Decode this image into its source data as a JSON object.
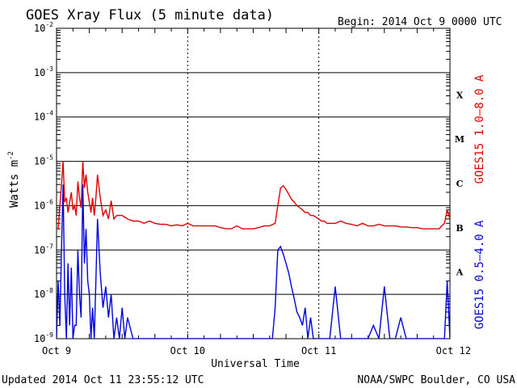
{
  "header": {
    "title": "GOES Xray Flux (5 minute data)",
    "begin": "Begin:  2014 Oct 9 0000 UTC"
  },
  "footer": {
    "updated": "Updated 2014 Oct 11 23:55:12 UTC",
    "credit": "NOAA/SWPC Boulder, CO USA"
  },
  "chart_data": {
    "type": "line",
    "title": "GOES Xray Flux (5 minute data)",
    "xlabel": "Universal Time",
    "ylabel": "Watts m",
    "ylabel_exponent": "-2",
    "y_scale": "log",
    "ylim": [
      1e-09,
      0.01
    ],
    "y_ticks": [
      {
        "value": 0.01,
        "base": "10",
        "exp": "-2"
      },
      {
        "value": 0.001,
        "base": "10",
        "exp": "-3"
      },
      {
        "value": 0.0001,
        "base": "10",
        "exp": "-4"
      },
      {
        "value": 1e-05,
        "base": "10",
        "exp": "-5"
      },
      {
        "value": 1e-06,
        "base": "10",
        "exp": "-6"
      },
      {
        "value": 1e-07,
        "base": "10",
        "exp": "-7"
      },
      {
        "value": 1e-08,
        "base": "10",
        "exp": "-8"
      },
      {
        "value": 1e-09,
        "base": "10",
        "exp": "-9"
      }
    ],
    "x_ticks": [
      {
        "value": 0,
        "label": "Oct 9"
      },
      {
        "value": 24,
        "label": "Oct 10"
      },
      {
        "value": 48,
        "label": "Oct 11"
      },
      {
        "value": 72,
        "label": "Oct 12"
      }
    ],
    "x_units": "hours since 2014 Oct 9 0000 UTC",
    "xlim": [
      0,
      72
    ],
    "flare_classes": [
      {
        "label": "X",
        "value": 0.0001
      },
      {
        "label": "M",
        "value": 1e-05
      },
      {
        "label": "C",
        "value": 1e-06
      },
      {
        "label": "B",
        "value": 1e-07
      },
      {
        "label": "A",
        "value": 1e-08
      }
    ],
    "grid": true,
    "series": [
      {
        "name": "GOES15 1.0–8.0 A",
        "color": "#e00000",
        "x": [
          0,
          0.3,
          0.6,
          0.9,
          1.2,
          1.5,
          1.8,
          2.1,
          2.4,
          2.7,
          3.0,
          3.3,
          3.6,
          3.9,
          4.2,
          4.5,
          4.8,
          5.1,
          5.4,
          5.7,
          6.0,
          6.3,
          6.6,
          6.9,
          7.2,
          7.5,
          8,
          8.5,
          9,
          9.5,
          10,
          10.5,
          11,
          12,
          13,
          14,
          15,
          16,
          17,
          18,
          19,
          20,
          21,
          22,
          23,
          24,
          25,
          26,
          27,
          28,
          29,
          30,
          31,
          32,
          33,
          34,
          35,
          36,
          37,
          38,
          39,
          40,
          40.5,
          41,
          41.5,
          42,
          42.5,
          43,
          43.5,
          44,
          44.5,
          45,
          45.5,
          46,
          46.5,
          47,
          47.5,
          48,
          48.5,
          49,
          49.5,
          50,
          51,
          52,
          53,
          54,
          55,
          56,
          57,
          58,
          59,
          60,
          61,
          62,
          63,
          64,
          65,
          66,
          67,
          68,
          69,
          70,
          70.5,
          71,
          71.5,
          72
        ],
        "y": [
          3e-07,
          3e-07,
          1e-06,
          3e-06,
          1e-05,
          1.2e-06,
          1.5e-06,
          7e-07,
          1.2e-06,
          2e-06,
          8e-07,
          1e-06,
          6e-07,
          3.5e-06,
          1.5e-06,
          9e-07,
          1e-05,
          2.5e-06,
          5e-06,
          2e-06,
          1.2e-06,
          7e-07,
          1.5e-06,
          6e-07,
          1.5e-06,
          5e-06,
          1.5e-06,
          6e-07,
          8e-07,
          5e-07,
          1.3e-06,
          5e-07,
          6e-07,
          6e-07,
          5e-07,
          4.5e-07,
          4.5e-07,
          4e-07,
          4.5e-07,
          4e-07,
          3.8e-07,
          3.8e-07,
          3.5e-07,
          3.7e-07,
          3.5e-07,
          4e-07,
          3.5e-07,
          3.5e-07,
          3.5e-07,
          3.5e-07,
          3.5e-07,
          3.2e-07,
          3e-07,
          3e-07,
          3.5e-07,
          3e-07,
          3e-07,
          3e-07,
          3.2e-07,
          3.5e-07,
          3.5e-07,
          4e-07,
          1e-06,
          2.5e-06,
          2.8e-06,
          2.3e-06,
          1.8e-06,
          1.4e-06,
          1.2e-06,
          1e-06,
          9e-07,
          8e-07,
          7e-07,
          7e-07,
          6e-07,
          6e-07,
          5.5e-07,
          5e-07,
          4.5e-07,
          4.5e-07,
          4e-07,
          4e-07,
          4e-07,
          4.5e-07,
          4e-07,
          3.8e-07,
          3.5e-07,
          4e-07,
          3.5e-07,
          3.5e-07,
          3.8e-07,
          3.5e-07,
          3.5e-07,
          3.5e-07,
          3.3e-07,
          3.3e-07,
          3.2e-07,
          3.2e-07,
          3e-07,
          3e-07,
          3e-07,
          3e-07,
          3.5e-07,
          4e-07,
          8e-07,
          5e-07
        ]
      },
      {
        "name": "GOES15 0.5–4.0 A",
        "color": "#0000e0",
        "x": [
          0,
          0.3,
          0.6,
          0.9,
          1.2,
          1.5,
          1.8,
          2.1,
          2.4,
          2.7,
          3.0,
          3.3,
          3.6,
          3.9,
          4.2,
          4.5,
          4.8,
          5.1,
          5.4,
          5.7,
          6.0,
          6.3,
          6.6,
          6.9,
          7.2,
          7.5,
          8,
          8.5,
          9,
          9.5,
          10,
          10.5,
          11,
          11.5,
          12,
          12.5,
          13,
          14,
          15,
          16,
          17,
          18,
          19,
          20,
          21,
          22,
          23,
          24,
          25,
          26,
          27,
          28,
          29,
          30,
          31,
          32,
          33,
          34,
          35,
          36,
          37,
          38,
          39,
          39.5,
          40,
          40.5,
          41,
          41.5,
          42,
          42.5,
          43,
          43.5,
          44,
          44.5,
          45,
          45.5,
          46,
          46.5,
          47,
          47.5,
          48,
          49,
          50,
          51,
          52,
          53,
          54,
          55,
          56,
          57,
          58,
          59,
          60,
          61,
          62,
          63,
          64,
          65,
          66,
          67,
          68,
          69,
          70,
          71,
          71.5,
          72
        ],
        "y": [
          1e-09,
          2e-08,
          2e-09,
          1e-07,
          3e-06,
          1e-08,
          1e-09,
          5e-08,
          2e-09,
          4e-08,
          1e-09,
          2e-09,
          2e-09,
          1e-07,
          1e-08,
          3e-09,
          3e-06,
          5e-08,
          3e-07,
          2e-08,
          1e-08,
          1e-09,
          5e-09,
          1e-09,
          2e-08,
          5e-07,
          3e-08,
          5e-09,
          1.5e-08,
          3e-09,
          1e-08,
          1e-09,
          3e-09,
          1e-09,
          5e-09,
          1e-09,
          3e-09,
          1e-09,
          5e-10,
          5e-10,
          5e-10,
          5e-10,
          5e-10,
          5e-10,
          5e-10,
          5e-10,
          5e-10,
          5e-10,
          5e-10,
          5e-10,
          5e-10,
          5e-10,
          5e-10,
          5e-10,
          5e-10,
          5e-10,
          5e-10,
          5e-10,
          5e-10,
          5e-10,
          5e-10,
          5e-10,
          5e-10,
          1e-09,
          5e-09,
          1e-07,
          1.2e-07,
          8e-08,
          5e-08,
          3e-08,
          1.5e-08,
          8e-09,
          4e-09,
          3e-09,
          2e-09,
          5e-09,
          1e-09,
          3e-09,
          1e-09,
          5e-10,
          5e-10,
          5e-10,
          5e-10,
          1.5e-08,
          1e-09,
          5e-10,
          5e-10,
          1e-09,
          5e-10,
          5e-10,
          2e-09,
          5e-10,
          1.5e-08,
          1e-09,
          5e-10,
          3e-09,
          1e-09,
          5e-10,
          5e-10,
          1e-09,
          5e-10,
          5e-10,
          5e-10,
          5e-10,
          2e-08,
          1e-09
        ]
      }
    ]
  }
}
